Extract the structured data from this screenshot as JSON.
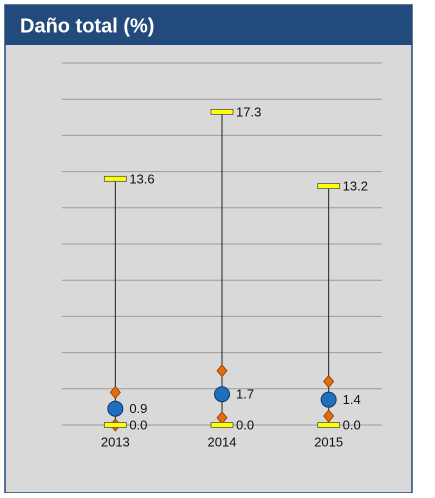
{
  "chart_data": {
    "type": "range",
    "title": "Daño total (%)",
    "categories": [
      "2013",
      "2014",
      "2015"
    ],
    "ylim": [
      0,
      20
    ],
    "yticks": [
      0,
      2,
      4,
      6,
      8,
      10,
      12,
      14,
      16,
      18,
      20
    ],
    "grid": true,
    "series": [
      {
        "marker": "bar",
        "color": "#ffff00",
        "values": [
          13.6,
          17.3,
          13.2
        ]
      },
      {
        "marker": "diamond",
        "color": "#e46c0a",
        "values": [
          1.8,
          3.0,
          2.4
        ]
      },
      {
        "marker": "circle",
        "color": "#1f6fbf",
        "values": [
          0.9,
          1.7,
          1.4
        ]
      },
      {
        "marker": "diamond",
        "color": "#e46c0a",
        "values": [
          0.0,
          0.4,
          0.5
        ]
      },
      {
        "marker": "bar",
        "color": "#ffff00",
        "values": [
          0,
          0,
          0
        ],
        "value_labels": [
          "0.0",
          "0.0",
          "0.0"
        ]
      }
    ],
    "labeled_series": [
      0,
      2,
      4
    ]
  }
}
